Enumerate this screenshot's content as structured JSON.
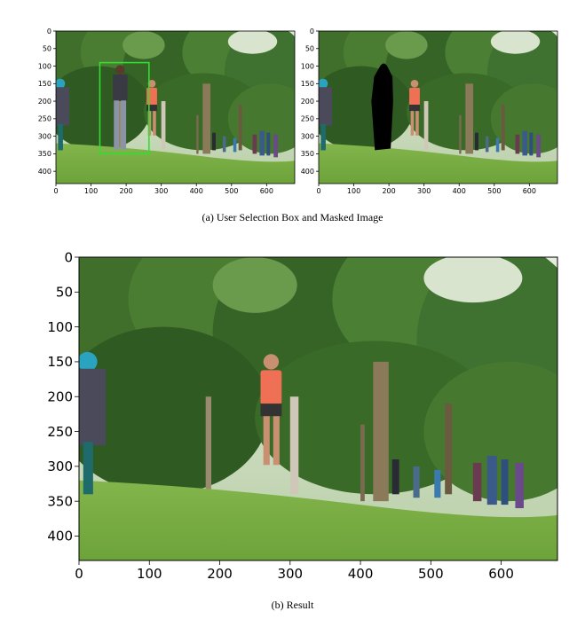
{
  "figures": [
    {
      "id": "a-left",
      "description_hint": "original image with user selection box",
      "x_ticks": [
        "0",
        "100",
        "200",
        "300",
        "400",
        "500",
        "600"
      ],
      "y_ticks": [
        "0",
        "50",
        "100",
        "150",
        "200",
        "250",
        "300",
        "350",
        "400"
      ],
      "x_range": [
        0,
        680
      ],
      "y_range": [
        0,
        435
      ],
      "selection_box": {
        "x0": 125,
        "y0": 90,
        "x1": 265,
        "y1": 350,
        "color": "#33dd33"
      }
    },
    {
      "id": "a-right",
      "x_ticks": [
        "0",
        "100",
        "200",
        "300",
        "400",
        "500",
        "600"
      ],
      "y_ticks": [
        "0",
        "50",
        "100",
        "150",
        "200",
        "250",
        "300",
        "350",
        "400"
      ],
      "x_range": [
        0,
        680
      ],
      "y_range": [
        0,
        435
      ]
    },
    {
      "id": "b",
      "x_ticks": [
        "0",
        "100",
        "200",
        "300",
        "400",
        "500",
        "600"
      ],
      "y_ticks": [
        "0",
        "50",
        "100",
        "150",
        "200",
        "250",
        "300",
        "350",
        "400"
      ],
      "x_range": [
        0,
        680
      ],
      "y_range": [
        0,
        435
      ]
    }
  ],
  "captions": {
    "a": "(a) User Selection Box and Masked Image",
    "b": "(b) Result"
  },
  "colors": {
    "grass": "#7fb247",
    "trees_dark": "#3c6d2a",
    "sky": "#dfe9d8"
  }
}
